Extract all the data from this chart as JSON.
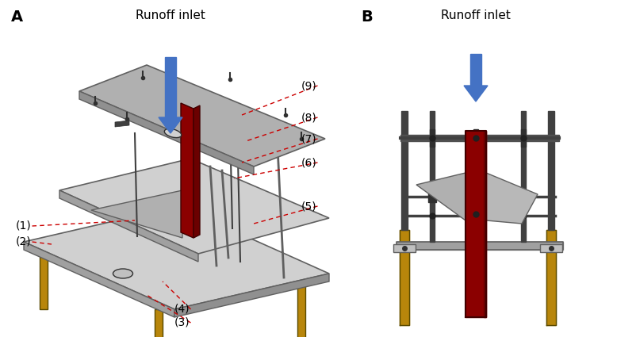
{
  "bg_color": "#ffffff",
  "label_A": "A",
  "label_B": "B",
  "title_A": "Runoff inlet",
  "title_B": "Runoff inlet",
  "arrow_color": "#4472c4",
  "red_color": "#8b0000",
  "gold_color": "#b8860b",
  "gray_color": "#a0a0a0",
  "dark_gray": "#606060",
  "light_gray": "#c8c8c8",
  "plate_gray": "#b0b0b0",
  "plate_light": "#d0d0d0",
  "dashed_color": "#cc0000",
  "font_size_label": 10,
  "font_size_AB": 14
}
